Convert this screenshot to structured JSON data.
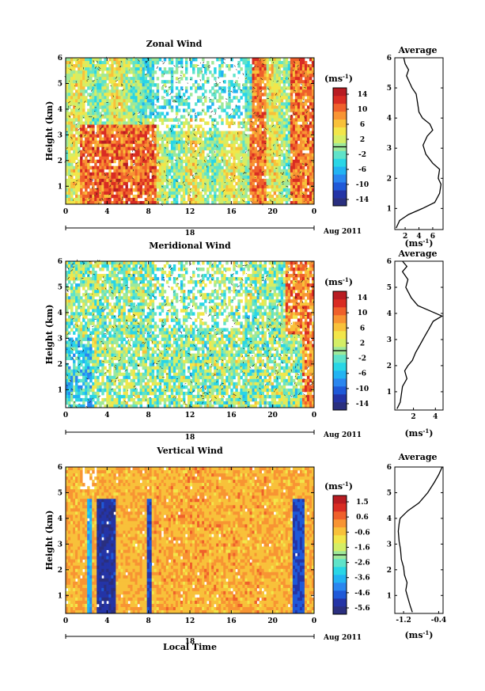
{
  "chart_data": [
    {
      "type": "heatmap",
      "title": "Zonal Wind",
      "ylabel": "Height (km)",
      "x_ticks": [
        "0",
        "4",
        "8",
        "12",
        "16",
        "20",
        "0"
      ],
      "xlim": [
        0,
        24
      ],
      "y_ticks": [
        "1",
        "2",
        "3",
        "4",
        "5",
        "6"
      ],
      "ylim": [
        0.3,
        6
      ],
      "date_center": "18",
      "date_label": "Aug 2011",
      "colorbar": {
        "unit": "(ms",
        "unit_sup": "-1",
        "unit_close": ")",
        "ticks": [
          "14",
          "10",
          "6",
          "2",
          "-2",
          "-6",
          "-10",
          "-14"
        ],
        "range": [
          -16,
          16
        ]
      },
      "average_profile": {
        "title": "Average",
        "x_ticks": [
          "2",
          "4",
          "6"
        ],
        "xlim": [
          0.5,
          7.5
        ],
        "y_ticks": [
          "1",
          "2",
          "3",
          "4",
          "5",
          "6"
        ],
        "xlabel": "(ms",
        "xlabel_sup": "-1",
        "xlabel_close": ")",
        "points": [
          [
            0.7,
            0.35
          ],
          [
            1.2,
            0.6
          ],
          [
            2.5,
            0.8
          ],
          [
            4.5,
            1.0
          ],
          [
            6.3,
            1.2
          ],
          [
            7.0,
            1.5
          ],
          [
            7.2,
            1.8
          ],
          [
            6.8,
            2.0
          ],
          [
            7.0,
            2.3
          ],
          [
            6.0,
            2.5
          ],
          [
            5.0,
            2.8
          ],
          [
            4.6,
            3.1
          ],
          [
            5.2,
            3.4
          ],
          [
            6.0,
            3.6
          ],
          [
            5.6,
            3.8
          ],
          [
            4.5,
            4.0
          ],
          [
            4.0,
            4.2
          ],
          [
            3.8,
            4.5
          ],
          [
            3.6,
            4.8
          ],
          [
            3.0,
            5.0
          ],
          [
            2.6,
            5.2
          ],
          [
            2.2,
            5.4
          ],
          [
            2.5,
            5.6
          ],
          [
            2.0,
            5.8
          ],
          [
            1.8,
            6.0
          ]
        ]
      }
    },
    {
      "type": "heatmap",
      "title": "Meridional Wind",
      "ylabel": "Height (km)",
      "x_ticks": [
        "0",
        "4",
        "8",
        "12",
        "16",
        "20",
        "0"
      ],
      "xlim": [
        0,
        24
      ],
      "y_ticks": [
        "1",
        "2",
        "3",
        "4",
        "5",
        "6"
      ],
      "ylim": [
        0.3,
        6
      ],
      "date_center": "18",
      "date_label": "Aug 2011",
      "colorbar": {
        "unit": "(ms",
        "unit_sup": "-1",
        "unit_close": ")",
        "ticks": [
          "14",
          "10",
          "6",
          "2",
          "-2",
          "-6",
          "-10",
          "-14"
        ],
        "range": [
          -16,
          16
        ]
      },
      "average_profile": {
        "title": "Average",
        "x_ticks": [
          "2",
          "4"
        ],
        "xlim": [
          0.3,
          4.7
        ],
        "y_ticks": [
          "1",
          "2",
          "3",
          "4",
          "5",
          "6"
        ],
        "xlabel": "(ms",
        "xlabel_sup": "-1",
        "xlabel_close": ")",
        "points": [
          [
            0.5,
            0.35
          ],
          [
            0.8,
            0.6
          ],
          [
            0.9,
            0.9
          ],
          [
            1.0,
            1.2
          ],
          [
            1.4,
            1.5
          ],
          [
            1.2,
            1.8
          ],
          [
            1.5,
            2.0
          ],
          [
            1.9,
            2.2
          ],
          [
            2.2,
            2.5
          ],
          [
            2.6,
            2.8
          ],
          [
            3.0,
            3.1
          ],
          [
            3.4,
            3.4
          ],
          [
            3.8,
            3.7
          ],
          [
            4.6,
            3.9
          ],
          [
            3.5,
            4.1
          ],
          [
            2.4,
            4.3
          ],
          [
            1.8,
            4.6
          ],
          [
            1.3,
            5.0
          ],
          [
            1.5,
            5.3
          ],
          [
            1.0,
            5.6
          ],
          [
            1.4,
            5.8
          ],
          [
            1.0,
            6.0
          ]
        ]
      }
    },
    {
      "type": "heatmap",
      "title": "Vertical Wind",
      "ylabel": "Height (km)",
      "xlabel": "Local Time",
      "x_ticks": [
        "0",
        "4",
        "8",
        "12",
        "16",
        "20",
        "0"
      ],
      "xlim": [
        0,
        24
      ],
      "y_ticks": [
        "1",
        "2",
        "3",
        "4",
        "5",
        "6"
      ],
      "ylim": [
        0.3,
        6
      ],
      "date_center": "18",
      "date_label": "Aug 2011",
      "colorbar": {
        "unit": "(ms",
        "unit_sup": "-1",
        "unit_close": ")",
        "ticks": [
          "1.5",
          "0.6",
          "-0.6",
          "-1.6",
          "-2.6",
          "-3.6",
          "-4.6",
          "-5.6"
        ],
        "range": [
          -6.0,
          2.0
        ]
      },
      "average_profile": {
        "title": "Average",
        "x_ticks": [
          "-1.2",
          "-0.4"
        ],
        "xlim": [
          -1.4,
          -0.3
        ],
        "y_ticks": [
          "1",
          "2",
          "3",
          "4",
          "5",
          "6"
        ],
        "xlabel": "(ms",
        "xlabel_sup": "-1",
        "xlabel_close": ")",
        "points": [
          [
            -1.0,
            0.35
          ],
          [
            -1.05,
            0.6
          ],
          [
            -1.1,
            0.9
          ],
          [
            -1.15,
            1.2
          ],
          [
            -1.12,
            1.5
          ],
          [
            -1.18,
            1.8
          ],
          [
            -1.2,
            2.1
          ],
          [
            -1.25,
            2.4
          ],
          [
            -1.27,
            2.8
          ],
          [
            -1.3,
            3.1
          ],
          [
            -1.32,
            3.5
          ],
          [
            -1.3,
            3.8
          ],
          [
            -1.28,
            4.0
          ],
          [
            -1.1,
            4.3
          ],
          [
            -0.85,
            4.6
          ],
          [
            -0.65,
            5.0
          ],
          [
            -0.5,
            5.4
          ],
          [
            -0.4,
            5.7
          ],
          [
            -0.32,
            6.0
          ]
        ]
      }
    }
  ]
}
